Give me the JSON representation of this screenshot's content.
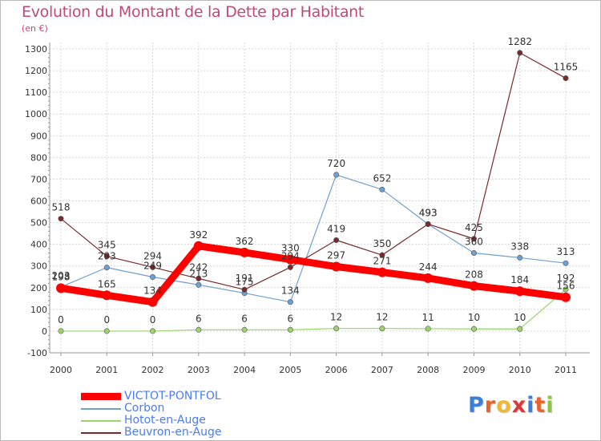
{
  "chart_data": {
    "type": "line",
    "title": "Evolution du Montant de la Dette par Habitant",
    "subtitle": "(en €)",
    "xlabel": "",
    "ylabel": "",
    "x": [
      "2000",
      "2001",
      "2002",
      "2003",
      "2004",
      "2005",
      "2006",
      "2007",
      "2008",
      "2009",
      "2010",
      "2011"
    ],
    "ylim": [
      -100,
      1300
    ],
    "ytick_step": 100,
    "yticks": [
      "-100",
      "0",
      "100",
      "200",
      "300",
      "400",
      "500",
      "600",
      "700",
      "800",
      "900",
      "1000",
      "1100",
      "1200",
      "1300"
    ],
    "grid": true,
    "legend_position": "bottom-left",
    "series": [
      {
        "name": "VICTOT-PONTFOL",
        "color": "#ff0000",
        "emphasis": true,
        "values": [
          198,
          165,
          134,
          392,
          362,
          330,
          297,
          271,
          244,
          208,
          184,
          156
        ],
        "labels": [
          "198",
          "165",
          "134",
          "392",
          "362",
          "330",
          "297",
          "271",
          "244",
          "208",
          "184",
          "156"
        ]
      },
      {
        "name": "Corbon",
        "color": "#6fa0d2",
        "emphasis": false,
        "values": [
          203,
          293,
          249,
          213,
          175,
          134,
          720,
          652,
          493,
          360,
          338,
          313
        ],
        "labels": [
          "203",
          "293",
          "249",
          "213",
          "175",
          "134",
          "720",
          "652",
          "493",
          "360",
          "338",
          "313"
        ]
      },
      {
        "name": "Hotot-en-Auge",
        "color": "#9ad46a",
        "emphasis": false,
        "values": [
          0,
          0,
          0,
          6,
          6,
          6,
          12,
          12,
          11,
          10,
          10,
          192
        ],
        "labels": [
          "0",
          "0",
          "0",
          "6",
          "6",
          "6",
          "12",
          "12",
          "11",
          "10",
          "10",
          "192"
        ]
      },
      {
        "name": "Beuvron-en-Auge",
        "color": "#7a2a2a",
        "emphasis": false,
        "values": [
          518,
          345,
          294,
          242,
          191,
          294,
          419,
          350,
          493,
          425,
          1282,
          1165
        ],
        "labels": [
          "518",
          "345",
          "294",
          "242",
          "191",
          "294",
          "419",
          "350",
          "493",
          "425",
          "1282",
          "1165"
        ]
      }
    ]
  },
  "logo": {
    "letters": [
      "P",
      "r",
      "o",
      "x",
      "i",
      "t",
      "i"
    ],
    "colors": [
      "#3d7fd6",
      "#e8632b",
      "#f0b830",
      "#d83a3a",
      "#3d7fd6",
      "#e8632b",
      "#8cc63f"
    ]
  }
}
